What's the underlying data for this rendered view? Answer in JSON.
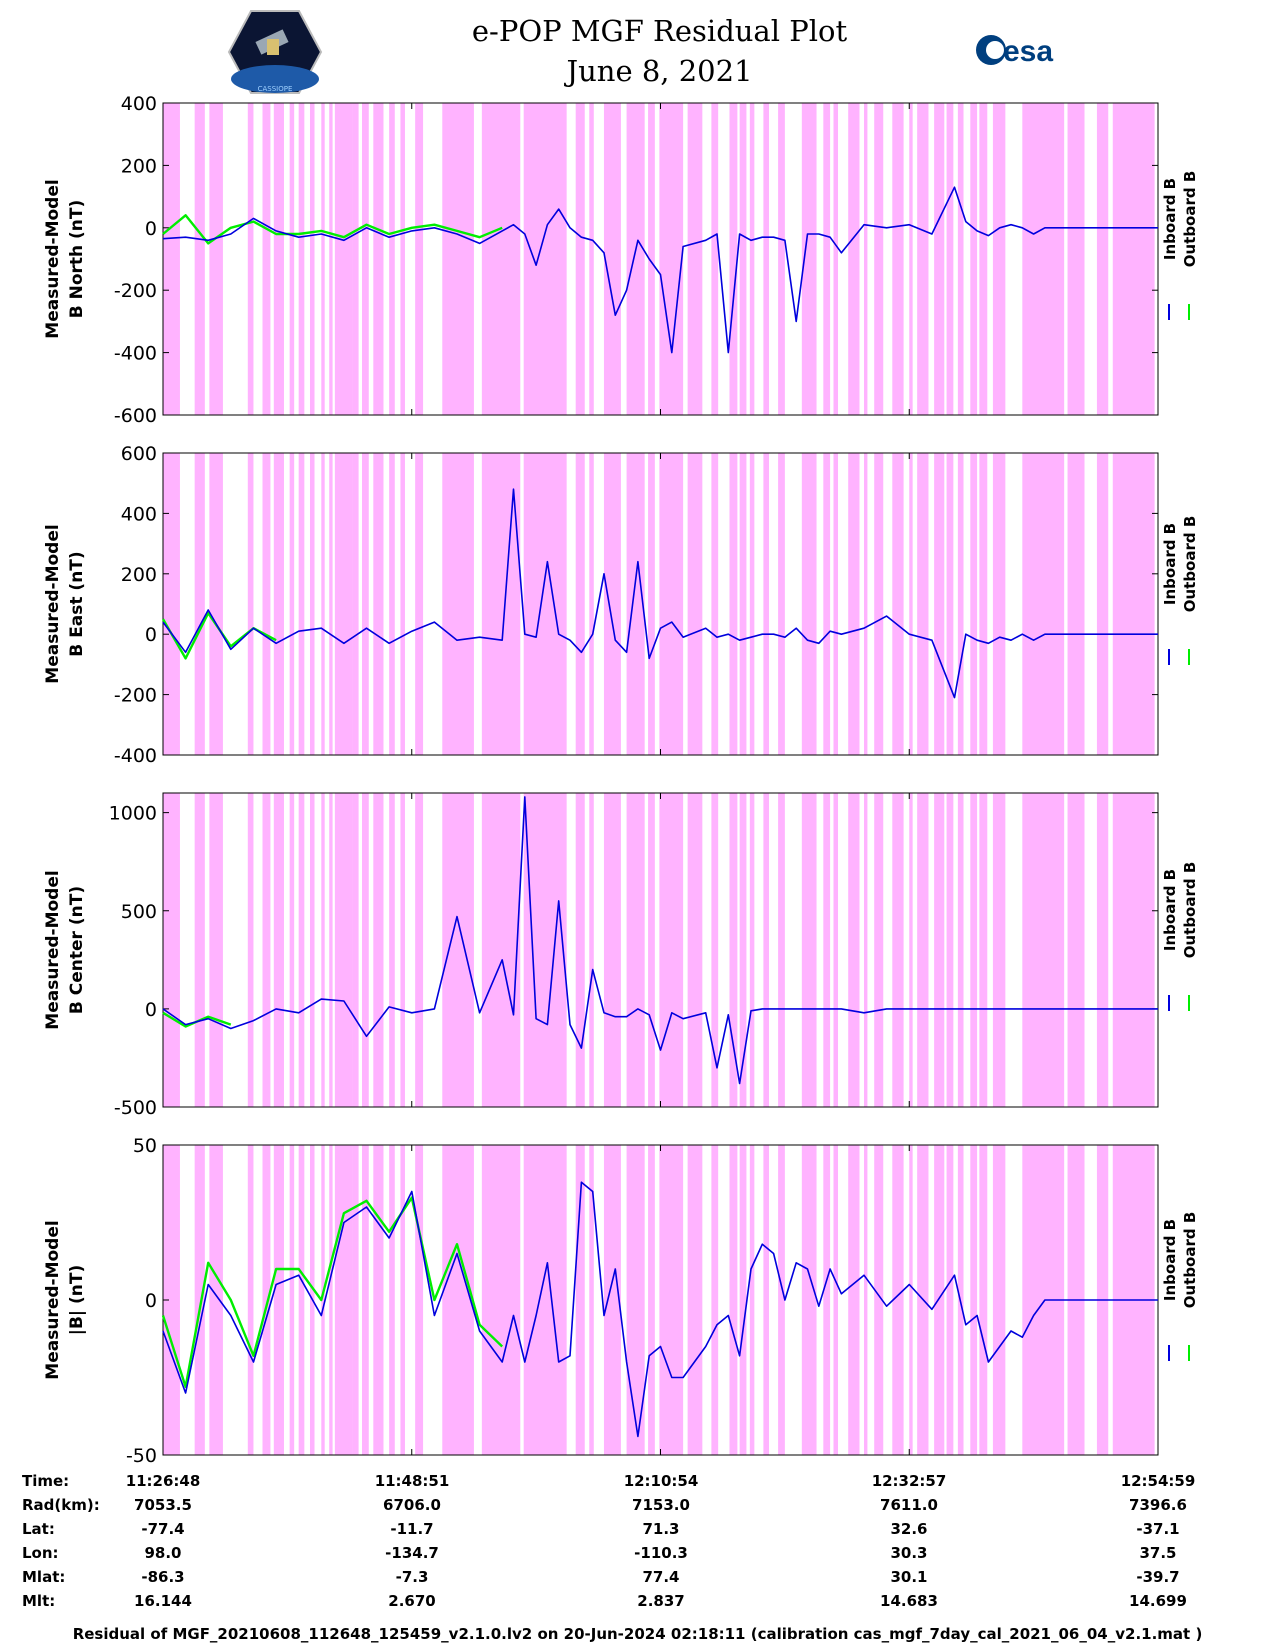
{
  "title": {
    "line1": "e-POP MGF Residual Plot",
    "line2": "June 8, 2021"
  },
  "logos": {
    "left_alt": "CASSIOPE",
    "right_text": "esa"
  },
  "colors": {
    "inboard": "#0000dd",
    "outboard": "#00ee00",
    "shade": "#ffb3ff"
  },
  "chart_data": [
    {
      "type": "line",
      "ylabel_line1": "Measured-Model",
      "ylabel_line2": "B North (nT)",
      "ylim": [
        -600,
        400
      ],
      "yticks": [
        "400",
        "200",
        "0",
        "-200",
        "-400",
        "-600"
      ],
      "tick_values": [
        400,
        200,
        0,
        -200,
        -400,
        -600
      ],
      "legend": [
        "Inboard B",
        "Outboard B"
      ],
      "series": [
        {
          "name": "Inboard B",
          "x": [
            0,
            2,
            4,
            6,
            8,
            10,
            12,
            14,
            16,
            18,
            20,
            22,
            24,
            26,
            28,
            30,
            31,
            32,
            33,
            34,
            35,
            36,
            37,
            38,
            39,
            40,
            41,
            42,
            43,
            44,
            45,
            46,
            48,
            49,
            50,
            51,
            52,
            53,
            54,
            55,
            56,
            57,
            58,
            59,
            60,
            62,
            64,
            66,
            68,
            70,
            71,
            72,
            73,
            74,
            75,
            76,
            77,
            78,
            80,
            82,
            84,
            86,
            88
          ],
          "y": [
            -35,
            -30,
            -40,
            -20,
            30,
            -10,
            -30,
            -20,
            -40,
            0,
            -30,
            -10,
            0,
            -20,
            -50,
            -10,
            10,
            -20,
            -120,
            10,
            60,
            0,
            -30,
            -40,
            -80,
            -280,
            -200,
            -40,
            -100,
            -150,
            -400,
            -60,
            -40,
            -20,
            -400,
            -20,
            -40,
            -30,
            -30,
            -40,
            -300,
            -20,
            -20,
            -30,
            -80,
            10,
            0,
            10,
            -20,
            130,
            20,
            -10,
            -25,
            0,
            10,
            0,
            -20,
            0,
            0,
            0,
            0,
            0,
            0
          ]
        },
        {
          "name": "Outboard B",
          "x": [
            0,
            2,
            4,
            6,
            8,
            10,
            12,
            14,
            16,
            18,
            20,
            22,
            24,
            26,
            28,
            30
          ],
          "y": [
            -20,
            40,
            -50,
            0,
            20,
            -20,
            -20,
            -10,
            -30,
            10,
            -20,
            0,
            10,
            -10,
            -30,
            0
          ]
        }
      ]
    },
    {
      "type": "line",
      "ylabel_line1": "Measured-Model",
      "ylabel_line2": "B East (nT)",
      "ylim": [
        -400,
        600
      ],
      "yticks": [
        "600",
        "400",
        "200",
        "0",
        "-200",
        "-400"
      ],
      "tick_values": [
        600,
        400,
        200,
        0,
        -200,
        -400
      ],
      "legend": [
        "Inboard B",
        "Outboard B"
      ],
      "series": [
        {
          "name": "Inboard B",
          "x": [
            0,
            2,
            4,
            6,
            8,
            10,
            12,
            14,
            16,
            18,
            20,
            22,
            24,
            26,
            28,
            30,
            31,
            32,
            33,
            34,
            35,
            36,
            37,
            38,
            39,
            40,
            41,
            42,
            43,
            44,
            45,
            46,
            48,
            49,
            50,
            51,
            52,
            53,
            54,
            55,
            56,
            57,
            58,
            59,
            60,
            62,
            64,
            66,
            68,
            70,
            71,
            72,
            73,
            74,
            75,
            76,
            77,
            78,
            80,
            82,
            84,
            86,
            88
          ],
          "y": [
            40,
            -60,
            80,
            -50,
            20,
            -30,
            10,
            20,
            -30,
            20,
            -30,
            10,
            40,
            -20,
            -10,
            -20,
            480,
            0,
            -10,
            240,
            0,
            -20,
            -60,
            0,
            200,
            -20,
            -60,
            240,
            -80,
            20,
            40,
            -10,
            20,
            -10,
            0,
            -20,
            -10,
            0,
            0,
            -10,
            20,
            -20,
            -30,
            10,
            0,
            20,
            60,
            0,
            -20,
            -210,
            0,
            -20,
            -30,
            -10,
            -20,
            0,
            -20,
            0,
            0,
            0,
            0,
            0,
            0
          ]
        },
        {
          "name": "Outboard B",
          "x": [
            0,
            2,
            4,
            6,
            8,
            10
          ],
          "y": [
            50,
            -80,
            70,
            -40,
            20,
            -20
          ]
        }
      ]
    },
    {
      "type": "line",
      "ylabel_line1": "Measured-Model",
      "ylabel_line2": "B Center (nT)",
      "ylim": [
        -500,
        1100
      ],
      "yticks": [
        "1000",
        "500",
        "0",
        "-500"
      ],
      "tick_values": [
        1000,
        500,
        0,
        -500
      ],
      "legend": [
        "Inboard B",
        "Outboard B"
      ],
      "series": [
        {
          "name": "Inboard B",
          "x": [
            0,
            2,
            4,
            6,
            8,
            10,
            12,
            14,
            16,
            18,
            20,
            22,
            24,
            26,
            28,
            30,
            31,
            32,
            33,
            34,
            35,
            36,
            37,
            38,
            39,
            40,
            41,
            42,
            43,
            44,
            45,
            46,
            48,
            49,
            50,
            51,
            52,
            53,
            54,
            55,
            56,
            57,
            58,
            59,
            60,
            62,
            64,
            66,
            68,
            70,
            71,
            72,
            73,
            74,
            75,
            76,
            77,
            78,
            80,
            82,
            84,
            86,
            88
          ],
          "y": [
            0,
            -80,
            -50,
            -100,
            -60,
            0,
            -20,
            50,
            40,
            -140,
            10,
            -20,
            0,
            470,
            -20,
            250,
            -30,
            1080,
            -50,
            -80,
            550,
            -80,
            -200,
            200,
            -20,
            -40,
            -40,
            0,
            -30,
            -210,
            -20,
            -50,
            -20,
            -300,
            -30,
            -380,
            -10,
            0,
            0,
            0,
            0,
            0,
            0,
            0,
            0,
            -20,
            0,
            0,
            0,
            0,
            0,
            0,
            0,
            0,
            0,
            0,
            0,
            0,
            0,
            0,
            0,
            0,
            0
          ]
        },
        {
          "name": "Outboard B",
          "x": [
            0,
            2,
            4,
            6
          ],
          "y": [
            -20,
            -90,
            -40,
            -80
          ]
        }
      ]
    },
    {
      "type": "line",
      "ylabel_line1": "Measured-Model",
      "ylabel_line2": "|B| (nT)",
      "ylim": [
        -50,
        50
      ],
      "yticks": [
        "50",
        "0",
        "-50"
      ],
      "tick_values": [
        50,
        0,
        -50
      ],
      "legend": [
        "Inboard B",
        "Outboard B"
      ],
      "series": [
        {
          "name": "Inboard B",
          "x": [
            0,
            2,
            4,
            6,
            8,
            10,
            12,
            14,
            16,
            18,
            20,
            22,
            24,
            26,
            28,
            30,
            31,
            32,
            33,
            34,
            35,
            36,
            37,
            38,
            39,
            40,
            41,
            42,
            43,
            44,
            45,
            46,
            48,
            49,
            50,
            51,
            52,
            53,
            54,
            55,
            56,
            57,
            58,
            59,
            60,
            62,
            64,
            66,
            68,
            70,
            71,
            72,
            73,
            74,
            75,
            76,
            77,
            78,
            80,
            82,
            84,
            86,
            88
          ],
          "y": [
            -10,
            -30,
            5,
            -5,
            -20,
            5,
            8,
            -5,
            25,
            30,
            20,
            35,
            -5,
            15,
            -10,
            -20,
            -5,
            -20,
            -5,
            12,
            -20,
            -18,
            38,
            35,
            -5,
            10,
            -20,
            -44,
            -18,
            -15,
            -25,
            -25,
            -15,
            -8,
            -5,
            -18,
            10,
            18,
            15,
            0,
            12,
            10,
            -2,
            10,
            2,
            8,
            -2,
            5,
            -3,
            8,
            -8,
            -5,
            -20,
            -15,
            -10,
            -12,
            -5,
            0,
            0,
            0,
            0,
            0,
            0
          ]
        },
        {
          "name": "Outboard B",
          "x": [
            0,
            2,
            4,
            6,
            8,
            10,
            12,
            14,
            16,
            18,
            20,
            22,
            24,
            26,
            28,
            30
          ],
          "y": [
            -5,
            -28,
            12,
            0,
            -18,
            10,
            10,
            0,
            28,
            32,
            22,
            33,
            0,
            18,
            -8,
            -15
          ]
        }
      ]
    }
  ],
  "ephemeris": {
    "row_labels": [
      "Time:",
      "Rad(km):",
      "Lat:",
      "Lon:",
      "Mlat:",
      "Mlt:"
    ],
    "columns": [
      [
        "11:26:48",
        "7053.5",
        "-77.4",
        "98.0",
        "-86.3",
        "16.144"
      ],
      [
        "11:48:51",
        "6706.0",
        "-11.7",
        "-134.7",
        "-7.3",
        "2.670"
      ],
      [
        "12:10:54",
        "7153.0",
        "71.3",
        "-110.3",
        "77.4",
        "2.837"
      ],
      [
        "12:32:57",
        "7611.0",
        "32.6",
        "30.3",
        "30.1",
        "14.683"
      ],
      [
        "12:54:59",
        "7396.6",
        "-37.1",
        "37.5",
        "-39.7",
        "14.699"
      ]
    ]
  },
  "footer": "Residual of MGF_20210608_112648_125459_v2.1.0.lv2 on 20-Jun-2024 02:18:11 (calibration cas_mgf_7day_cal_2021_06_04_v2.1.mat )"
}
